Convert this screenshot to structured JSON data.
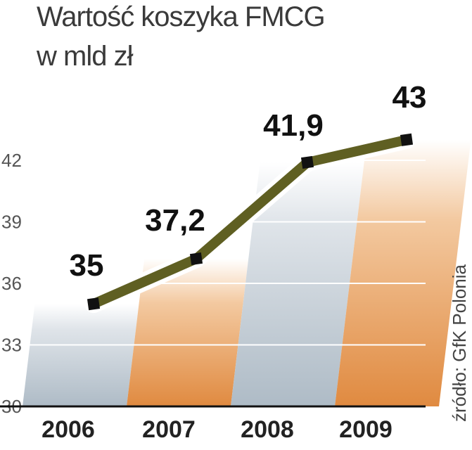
{
  "title_line1": "Wartość koszyka FMCG",
  "title_line2": "w mld zł",
  "source": "źródło: GfK Polonia",
  "colors": {
    "line": "#5f5f22",
    "highlight": "#c8203a",
    "axis": "#111111",
    "grid": "#ffffff",
    "bar_gray": "#c9d1d8",
    "bar_orange": "#e9a062"
  },
  "chart_data": {
    "type": "line",
    "title": "Wartość koszyka FMCG",
    "subtitle": "w mld zł",
    "categories": [
      "2006",
      "2007",
      "2008",
      "2009"
    ],
    "values": [
      35,
      37.2,
      41.9,
      43
    ],
    "labels": [
      "35",
      "37,2",
      "41,9",
      "43"
    ],
    "yticks": [
      30,
      33,
      36,
      39,
      42
    ],
    "ylim": [
      30,
      43
    ],
    "grid": true
  }
}
